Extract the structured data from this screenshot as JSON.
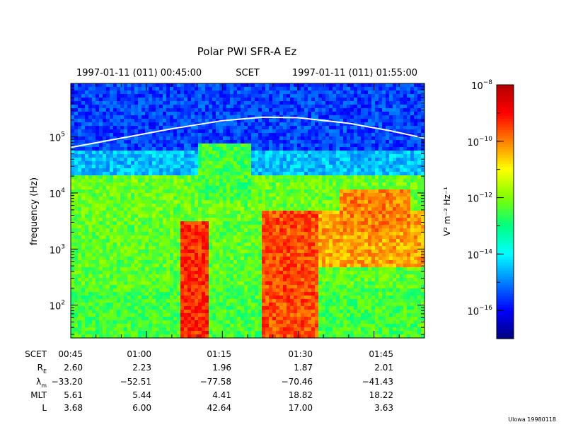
{
  "title": "Polar PWI SFR-A Ez",
  "header": {
    "start_time": "1997-01-11 (011) 00:45:00",
    "scet_label": "SCET",
    "end_time": "1997-01-11 (011) 01:55:00"
  },
  "credit": "Ulowa 19980118",
  "ephemeris": {
    "rows": [
      {
        "label": "SCET",
        "values": [
          "00:45",
          "01:00",
          "01:15",
          "01:30",
          "01:45"
        ]
      },
      {
        "label": "R_E",
        "values": [
          "2.60",
          "2.23",
          "1.96",
          "1.87",
          "2.01"
        ]
      },
      {
        "label": "λ_m",
        "values": [
          "−33.20",
          "−52.51",
          "−77.58",
          "−70.46",
          "−41.43"
        ]
      },
      {
        "label": "MLT",
        "values": [
          "5.61",
          "5.44",
          "4.41",
          "18.82",
          "18.22"
        ]
      },
      {
        "label": "L",
        "values": [
          "3.68",
          "6.00",
          "42.64",
          "17.00",
          "3.63"
        ]
      }
    ]
  },
  "chart_data": {
    "type": "heatmap",
    "title": "Polar PWI SFR-A Ez",
    "ylabel": "frequency (Hz)",
    "y_scale": "log",
    "ylim": [
      26,
      900000
    ],
    "y_major_ticks": [
      100,
      1000,
      10000,
      100000
    ],
    "xlim": [
      "00:45",
      "01:55"
    ],
    "x_tick_labels": [
      "00:45",
      "01:00",
      "01:15",
      "01:30",
      "01:45"
    ],
    "colorbar": {
      "label": "V² m⁻² Hz⁻¹",
      "scale": "log",
      "range": [
        1e-17,
        1e-08
      ],
      "tick_exponents": [
        -8,
        -10,
        -12,
        -14,
        -16
      ],
      "colors": [
        "#00007f",
        "#0000ff",
        "#0080ff",
        "#00ffff",
        "#00ff80",
        "#80ff00",
        "#ffff00",
        "#ff8000",
        "#ff0000",
        "#b00000"
      ]
    },
    "overlay_curve": {
      "color": "#ffffff",
      "points": [
        {
          "t": "00:45",
          "f": 65000
        },
        {
          "t": "00:55",
          "f": 95000
        },
        {
          "t": "01:05",
          "f": 140000
        },
        {
          "t": "01:15",
          "f": 195000
        },
        {
          "t": "01:23",
          "f": 225000
        },
        {
          "t": "01:30",
          "f": 220000
        },
        {
          "t": "01:40",
          "f": 175000
        },
        {
          "t": "01:48",
          "f": 130000
        },
        {
          "t": "01:55",
          "f": 95000
        }
      ]
    },
    "intensity_features": [
      {
        "t_start": "00:45",
        "t_end": "01:55",
        "f_low": 60000,
        "f_high": 900000,
        "log_intensity": -15.5
      },
      {
        "t_start": "00:45",
        "t_end": "01:55",
        "f_low": 26,
        "f_high": 200,
        "log_intensity": -12.5
      },
      {
        "t_start": "00:45",
        "t_end": "01:55",
        "f_low": 200,
        "f_high": 3000,
        "log_intensity": -12.3
      },
      {
        "t_start": "00:45",
        "t_end": "01:55",
        "f_low": 3000,
        "f_high": 20000,
        "log_intensity": -12.2
      },
      {
        "t_start": "00:45",
        "t_end": "01:55",
        "f_low": 20000,
        "f_high": 60000,
        "log_intensity": -14.5
      },
      {
        "t_start": "01:07",
        "t_end": "01:12",
        "f_low": 26,
        "f_high": 3000,
        "log_intensity": -9.3
      },
      {
        "t_start": "01:23",
        "t_end": "01:34",
        "f_low": 26,
        "f_high": 5000,
        "log_intensity": -9.6
      },
      {
        "t_start": "01:34",
        "t_end": "01:55",
        "f_low": 500,
        "f_high": 5000,
        "log_intensity": -10.3
      },
      {
        "t_start": "01:38",
        "t_end": "01:52",
        "f_low": 2000,
        "f_high": 12000,
        "log_intensity": -10.0
      },
      {
        "t_start": "01:10",
        "t_end": "01:21",
        "f_low": 8000,
        "f_high": 80000,
        "log_intensity": -12.5
      }
    ]
  }
}
